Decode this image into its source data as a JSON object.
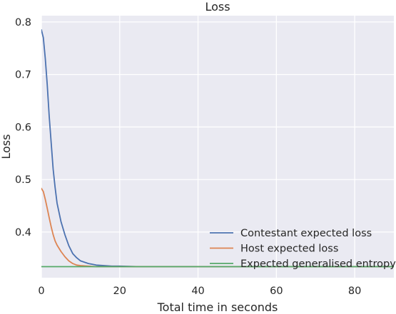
{
  "chart_data": {
    "type": "line",
    "title": "Loss",
    "xlabel": "Total time in seconds",
    "ylabel": "Loss",
    "xlim": [
      0,
      90
    ],
    "ylim": [
      0.313,
      0.812
    ],
    "xticks": [
      0,
      20,
      40,
      60,
      80
    ],
    "yticks": [
      0.4,
      0.5,
      0.6,
      0.7,
      0.8
    ],
    "grid": true,
    "legend_position": "lower-right",
    "colors": {
      "plot_background": "#eaeaf2",
      "grid": "#ffffff",
      "text": "#262626"
    },
    "series": [
      {
        "name": "Contestant expected loss",
        "color": "#4c72b0",
        "x": [
          0,
          0.5,
          1,
          1.5,
          2,
          2.5,
          3,
          3.5,
          4,
          5,
          6,
          7,
          8,
          9,
          10,
          12,
          14,
          16,
          18,
          20,
          25,
          30,
          40,
          50,
          60,
          70,
          80,
          90
        ],
        "y": [
          0.785,
          0.77,
          0.73,
          0.68,
          0.62,
          0.57,
          0.52,
          0.485,
          0.455,
          0.42,
          0.395,
          0.374,
          0.359,
          0.351,
          0.345,
          0.34,
          0.337,
          0.336,
          0.335,
          0.335,
          0.334,
          0.334,
          0.334,
          0.334,
          0.334,
          0.334,
          0.334,
          0.334
        ]
      },
      {
        "name": "Host expected loss",
        "color": "#dd8452",
        "x": [
          0,
          0.5,
          1,
          1.5,
          2,
          2.5,
          3,
          3.5,
          4,
          5,
          6,
          7,
          8,
          9,
          10,
          12,
          14,
          16,
          18,
          20,
          25,
          30,
          40,
          50,
          60,
          70,
          80,
          90
        ],
        "y": [
          0.483,
          0.477,
          0.462,
          0.445,
          0.427,
          0.41,
          0.395,
          0.383,
          0.375,
          0.363,
          0.353,
          0.345,
          0.34,
          0.337,
          0.336,
          0.335,
          0.334,
          0.334,
          0.334,
          0.334,
          0.334,
          0.334,
          0.334,
          0.334,
          0.334,
          0.334,
          0.334,
          0.334
        ]
      },
      {
        "name": "Expected generalised entropy",
        "color": "#55a868",
        "x": [
          0,
          10,
          20,
          30,
          40,
          50,
          60,
          70,
          80,
          90
        ],
        "y": [
          0.334,
          0.334,
          0.334,
          0.334,
          0.334,
          0.334,
          0.334,
          0.334,
          0.334,
          0.334
        ]
      }
    ]
  }
}
